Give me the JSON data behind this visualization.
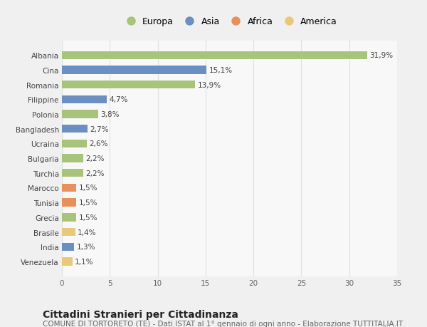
{
  "categories": [
    "Venezuela",
    "India",
    "Brasile",
    "Grecia",
    "Tunisia",
    "Marocco",
    "Turchia",
    "Bulgaria",
    "Ucraina",
    "Bangladesh",
    "Polonia",
    "Filippine",
    "Romania",
    "Cina",
    "Albania"
  ],
  "values": [
    1.1,
    1.3,
    1.4,
    1.5,
    1.5,
    1.5,
    2.2,
    2.2,
    2.6,
    2.7,
    3.8,
    4.7,
    13.9,
    15.1,
    31.9
  ],
  "labels": [
    "1,1%",
    "1,3%",
    "1,4%",
    "1,5%",
    "1,5%",
    "1,5%",
    "2,2%",
    "2,2%",
    "2,6%",
    "2,7%",
    "3,8%",
    "4,7%",
    "13,9%",
    "15,1%",
    "31,9%"
  ],
  "colors": [
    "#e8c97a",
    "#6b8fc2",
    "#e8c97a",
    "#a8c47a",
    "#e8905a",
    "#e8905a",
    "#a8c47a",
    "#a8c47a",
    "#a8c47a",
    "#6b8fc2",
    "#a8c47a",
    "#6b8fc2",
    "#a8c47a",
    "#6b8fc2",
    "#a8c47a"
  ],
  "legend": [
    {
      "label": "Europa",
      "color": "#a8c47a"
    },
    {
      "label": "Asia",
      "color": "#6b8fc2"
    },
    {
      "label": "Africa",
      "color": "#e8905a"
    },
    {
      "label": "America",
      "color": "#e8c97a"
    }
  ],
  "xlim": [
    0,
    35
  ],
  "xticks": [
    0,
    5,
    10,
    15,
    20,
    25,
    30,
    35
  ],
  "title": "Cittadini Stranieri per Cittadinanza",
  "subtitle": "COMUNE DI TORTORETO (TE) - Dati ISTAT al 1° gennaio di ogni anno - Elaborazione TUTTITALIA.IT",
  "bg_color": "#f0f0f0",
  "plot_bg_color": "#f8f8f8",
  "grid_color": "#e0e0e0",
  "bar_height": 0.55,
  "label_fontsize": 7.5,
  "tick_fontsize": 7.5,
  "legend_fontsize": 9,
  "title_fontsize": 10,
  "subtitle_fontsize": 7.5
}
